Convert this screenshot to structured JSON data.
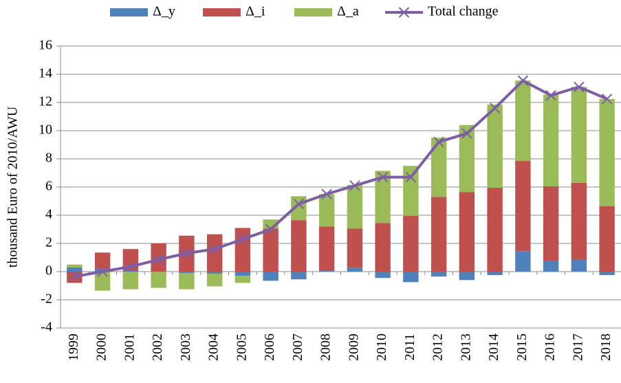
{
  "chart_data": {
    "type": "bar",
    "stacked": true,
    "y_label": "thousand Euro of 2010/AWU",
    "categories": [
      "1999",
      "2000",
      "2001",
      "2002",
      "2003",
      "2004",
      "2005",
      "2006",
      "2007",
      "2008",
      "2009",
      "2010",
      "2011",
      "2012",
      "2013",
      "2014",
      "2015",
      "2016",
      "2017",
      "2018"
    ],
    "series": [
      {
        "name": "Δ_y",
        "color": "#4f81bd",
        "values": [
          0.3,
          0.2,
          0.05,
          0.0,
          -0.1,
          -0.15,
          -0.3,
          -0.65,
          -0.55,
          0.05,
          0.3,
          -0.45,
          -0.75,
          -0.35,
          -0.6,
          -0.25,
          1.45,
          0.75,
          0.85,
          -0.25
        ]
      },
      {
        "name": "Δ_i",
        "color": "#c0504d",
        "values": [
          -0.8,
          1.15,
          1.55,
          2.0,
          2.55,
          2.65,
          3.1,
          3.05,
          3.65,
          3.15,
          2.75,
          3.45,
          3.95,
          5.3,
          5.65,
          5.95,
          6.4,
          5.3,
          5.45,
          4.65
        ]
      },
      {
        "name": "Δ_a",
        "color": "#9bbb59",
        "values": [
          0.2,
          -1.35,
          -1.25,
          -1.15,
          -1.15,
          -0.9,
          -0.5,
          0.65,
          1.7,
          2.3,
          3.1,
          3.7,
          3.55,
          4.2,
          4.75,
          5.9,
          5.7,
          6.5,
          6.8,
          7.6
        ]
      },
      {
        "name": "Total change",
        "type": "line",
        "color": "#7d5ea5",
        "values": [
          -0.35,
          0.0,
          0.35,
          0.85,
          1.3,
          1.6,
          2.3,
          3.0,
          4.8,
          5.5,
          6.1,
          6.7,
          6.7,
          9.2,
          9.8,
          11.6,
          13.55,
          12.5,
          13.1,
          12.25
        ]
      }
    ],
    "ylim": [
      -4,
      16
    ],
    "yticks": [
      -4,
      -2,
      0,
      2,
      4,
      6,
      8,
      10,
      12,
      14,
      16
    ],
    "grid": true,
    "legend": "top"
  }
}
